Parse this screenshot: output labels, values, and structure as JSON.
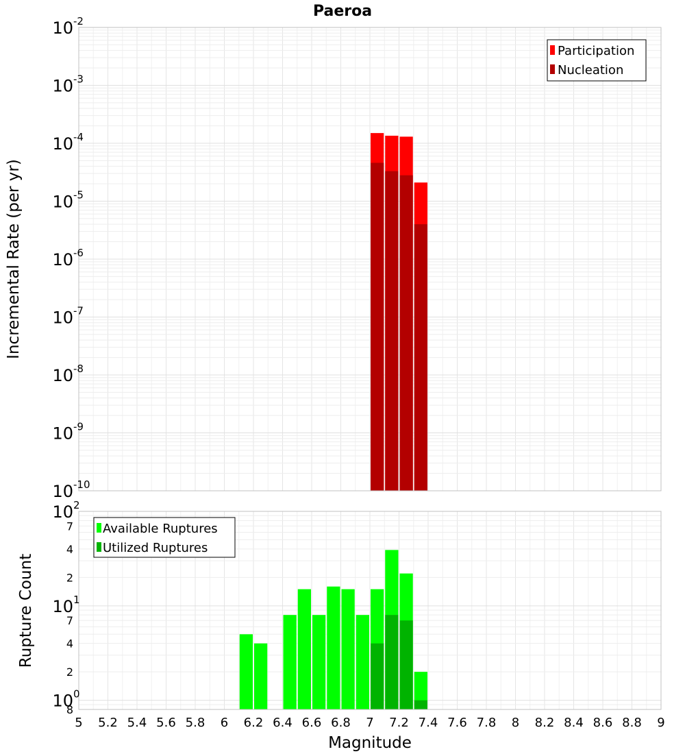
{
  "chart_data": [
    {
      "type": "bar",
      "title": "Paeroa",
      "xlabel": "",
      "ylabel": "Incremental Rate (per yr)",
      "y_scale": "log",
      "ylim": [
        1e-10,
        0.01
      ],
      "xlim": [
        5,
        9
      ],
      "bin_width": 0.1,
      "grid": true,
      "legend_position": "top-right",
      "y_ticks": [
        {
          "base": "10",
          "exp": "-10",
          "value": 1e-10
        },
        {
          "base": "10",
          "exp": "-9",
          "value": 1e-09
        },
        {
          "base": "10",
          "exp": "-8",
          "value": 1e-08
        },
        {
          "base": "10",
          "exp": "-7",
          "value": 1e-07
        },
        {
          "base": "10",
          "exp": "-6",
          "value": 1e-06
        },
        {
          "base": "10",
          "exp": "-5",
          "value": 1e-05
        },
        {
          "base": "10",
          "exp": "-4",
          "value": 0.0001
        },
        {
          "base": "10",
          "exp": "-3",
          "value": 0.001
        },
        {
          "base": "10",
          "exp": "-2",
          "value": 0.01
        }
      ],
      "series": [
        {
          "name": "Participation",
          "color": "#ff0000",
          "x": [
            7.05,
            7.15,
            7.25,
            7.35
          ],
          "values": [
            0.00015,
            0.000135,
            0.00013,
            2.1e-05
          ]
        },
        {
          "name": "Nucleation",
          "color": "#b30000",
          "x": [
            7.05,
            7.15,
            7.25,
            7.35
          ],
          "values": [
            4.6e-05,
            3.3e-05,
            2.8e-05,
            4e-06
          ]
        }
      ]
    },
    {
      "type": "bar",
      "title": "",
      "xlabel": "Magnitude",
      "ylabel": "Rupture Count",
      "y_scale": "log",
      "ylim": [
        0.8,
        100
      ],
      "xlim": [
        5,
        9
      ],
      "bin_width": 0.1,
      "grid": true,
      "legend_position": "top-left",
      "x_ticks": [
        "5",
        "5.2",
        "5.4",
        "5.6",
        "5.8",
        "6",
        "6.2",
        "6.4",
        "6.6",
        "6.8",
        "7",
        "7.2",
        "7.4",
        "7.6",
        "7.8",
        "8",
        "8.2",
        "8.4",
        "8.6",
        "8.8",
        "9"
      ],
      "y_major_ticks": [
        {
          "base": "10",
          "exp": "0",
          "value": 1
        },
        {
          "base": "10",
          "exp": "1",
          "value": 10
        },
        {
          "base": "10",
          "exp": "2",
          "value": 100
        }
      ],
      "y_minor_ticks": [
        {
          "label": "8",
          "value": 0.8
        },
        {
          "label": "2",
          "value": 2
        },
        {
          "label": "4",
          "value": 4
        },
        {
          "label": "7",
          "value": 7
        },
        {
          "label": "2",
          "value": 20
        },
        {
          "label": "4",
          "value": 40
        },
        {
          "label": "7",
          "value": 70
        }
      ],
      "series": [
        {
          "name": "Available Ruptures",
          "color": "#00ff00",
          "x": [
            6.15,
            6.25,
            6.45,
            6.55,
            6.65,
            6.75,
            6.85,
            6.95,
            7.05,
            7.15,
            7.25,
            7.35
          ],
          "values": [
            5,
            4,
            8,
            15,
            8,
            16,
            15,
            8,
            15,
            39,
            22,
            2
          ]
        },
        {
          "name": "Utilized Ruptures",
          "color": "#00b300",
          "x": [
            7.05,
            7.15,
            7.25,
            7.35
          ],
          "values": [
            4,
            8,
            7,
            1
          ]
        }
      ]
    }
  ]
}
